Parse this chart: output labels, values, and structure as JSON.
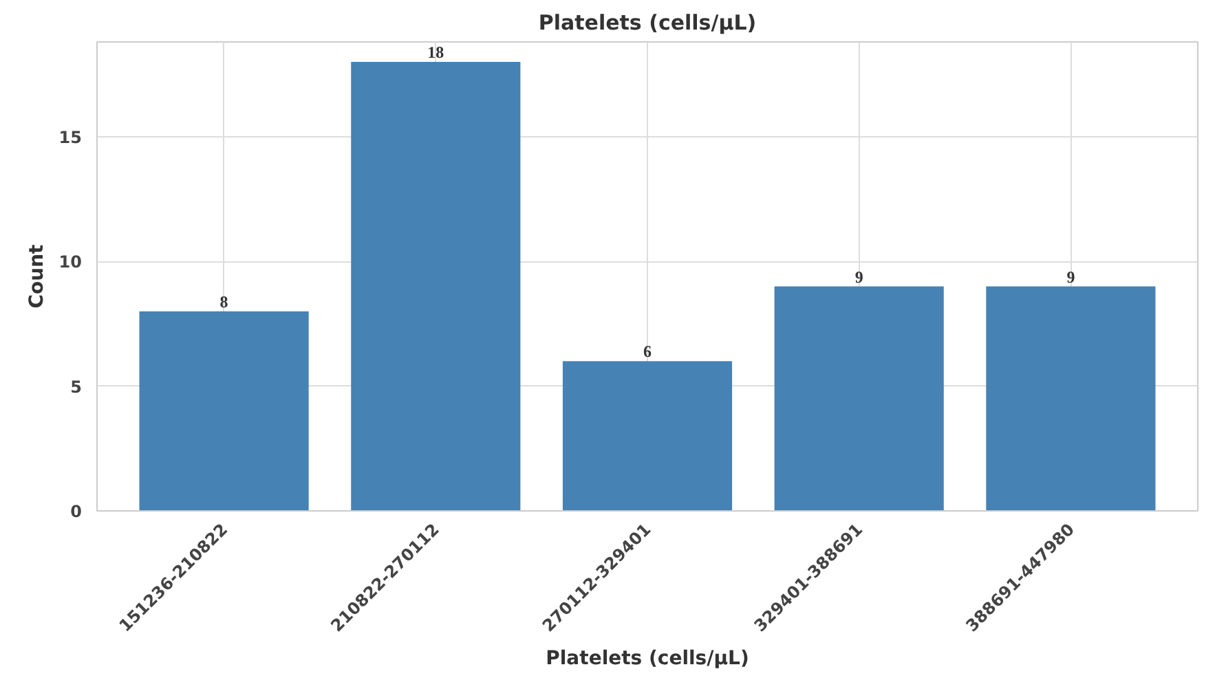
{
  "chart_data": {
    "type": "bar",
    "title": "Platelets (cells/µL)",
    "xlabel": "Platelets (cells/µL)",
    "ylabel": "Count",
    "categories": [
      "151236-210822",
      "210822-270112",
      "270112-329401",
      "329401-388691",
      "388691-447980"
    ],
    "values": [
      8,
      18,
      6,
      9,
      9
    ],
    "color": "#4682b4",
    "ylim": [
      0,
      18.8
    ],
    "yticks": [
      0,
      5,
      10,
      15
    ],
    "grid": true,
    "data_labels": true
  }
}
